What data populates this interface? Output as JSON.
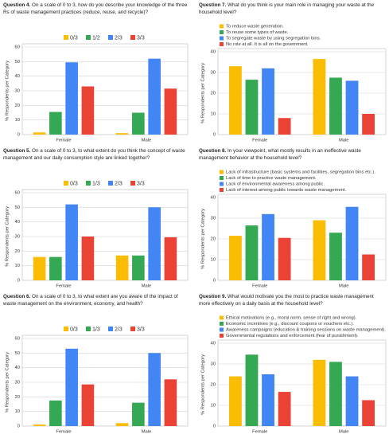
{
  "chart_data": [
    {
      "type": "bar",
      "question": "Question 4.",
      "title": "On a scale of 0 to 3, how do you describe your knowledge of the three Rs of waste management practices (reduce, reuse, and recycle)?",
      "ylabel": "% Respondents per Category",
      "categories": [
        "Female",
        "Male"
      ],
      "series": [
        {
          "name": "0/3",
          "color": "#fbbc04",
          "values": [
            1.5,
            1
          ]
        },
        {
          "name": "1/2",
          "color": "#34a853",
          "values": [
            15.5,
            15
          ]
        },
        {
          "name": "2/3",
          "color": "#4285f4",
          "values": [
            49.5,
            52
          ]
        },
        {
          "name": "3/3",
          "color": "#ea4335",
          "values": [
            33,
            31.5
          ]
        }
      ],
      "ylim": [
        0,
        60
      ],
      "yticks": [
        0,
        10,
        20,
        30,
        40,
        50,
        60
      ],
      "grid": true,
      "legend": "top"
    },
    {
      "type": "bar",
      "question": "Question 7.",
      "title": "What do you think is your main role in managing your waste at the household level?",
      "ylabel": "% Respondents per Category",
      "categories": [
        "Female",
        "Male"
      ],
      "series": [
        {
          "name": "To reduce waste generation.",
          "color": "#fbbc04",
          "values": [
            33,
            36.5
          ]
        },
        {
          "name": "To reuse some types of waste.",
          "color": "#34a853",
          "values": [
            26.5,
            27.5
          ]
        },
        {
          "name": "To segregate waste by using segregation bins.",
          "color": "#4285f4",
          "values": [
            32,
            26
          ]
        },
        {
          "name": "No role at all. It is all on the government.",
          "color": "#ea4335",
          "values": [
            8,
            10
          ]
        }
      ],
      "ylim": [
        0,
        40
      ],
      "yticks": [
        0,
        10,
        20,
        30,
        40
      ],
      "grid": true,
      "legend": "top-left"
    },
    {
      "type": "bar",
      "question": "Question 5.",
      "title": "On a scale of 0 to 3, to what extent do you think the concept of waste management and our daily consumption style are linked together?",
      "ylabel": "% Respondents per Category",
      "categories": [
        "Female",
        "Male"
      ],
      "series": [
        {
          "name": "0/3",
          "color": "#fbbc04",
          "values": [
            16,
            17
          ]
        },
        {
          "name": "1/3",
          "color": "#34a853",
          "values": [
            16,
            17
          ]
        },
        {
          "name": "2/3",
          "color": "#4285f4",
          "values": [
            52,
            50
          ]
        },
        {
          "name": "3/3",
          "color": "#ea4335",
          "values": [
            30,
            29.5
          ]
        }
      ],
      "ylim": [
        0,
        60
      ],
      "yticks": [
        0,
        10,
        20,
        30,
        40,
        50,
        60
      ],
      "grid": true,
      "legend": "top"
    },
    {
      "type": "bar",
      "question": "Question 8.",
      "title": "In your viewpoint, what mostly results in an ineffective waste management behavior at the household level?",
      "ylabel": "% Respondents per Category",
      "categories": [
        "Female",
        "Male"
      ],
      "series": [
        {
          "name": "Lack of infrastructure (basic systems and facilities, segregation bins etc.).",
          "color": "#fbbc04",
          "values": [
            21.5,
            29
          ]
        },
        {
          "name": "Lack of time to practice waste management.",
          "color": "#34a853",
          "values": [
            26.5,
            23
          ]
        },
        {
          "name": "Lack of environmental awareness among public.",
          "color": "#4285f4",
          "values": [
            32,
            35.5
          ]
        },
        {
          "name": "Lack of interest among public towards waste management.",
          "color": "#ea4335",
          "values": [
            20.5,
            12.5
          ]
        }
      ],
      "ylim": [
        0,
        40
      ],
      "yticks": [
        0,
        10,
        20,
        30,
        40
      ],
      "grid": true,
      "legend": "top-left"
    },
    {
      "type": "bar",
      "question": "Question 6.",
      "title": "On a scale of 0 to 3, to what extent are you aware of the impact of waste management on the environment, economy, and health?",
      "ylabel": "% Respondents per Category",
      "categories": [
        "Female",
        "Male"
      ],
      "series": [
        {
          "name": "0/3",
          "color": "#fbbc04",
          "values": [
            1,
            2
          ]
        },
        {
          "name": "1/3",
          "color": "#34a853",
          "values": [
            17.5,
            16
          ]
        },
        {
          "name": "2/3",
          "color": "#4285f4",
          "values": [
            53,
            50
          ]
        },
        {
          "name": "3/3",
          "color": "#ea4335",
          "values": [
            28.5,
            32
          ]
        }
      ],
      "ylim": [
        0,
        60
      ],
      "yticks": [
        0,
        10,
        20,
        30,
        40,
        50,
        60
      ],
      "grid": true,
      "legend": "top"
    },
    {
      "type": "bar",
      "question": "Question 9.",
      "title": "What would motivate you the most to practice waste management more effectively on a daily basis at the household level?",
      "ylabel": "% Respondents per Category",
      "categories": [
        "Female",
        "Male"
      ],
      "series": [
        {
          "name": "Ethical motivations (e.g., moral norm, sense of right and wrong).",
          "color": "#fbbc04",
          "values": [
            24,
            32
          ]
        },
        {
          "name": "Economic incentives (e.g., discount coupons or vouchers etc.).",
          "color": "#34a853",
          "values": [
            34.5,
            31
          ]
        },
        {
          "name": "Awareness campaigns (education & training sessions on waste management).",
          "color": "#4285f4",
          "values": [
            25,
            24
          ]
        },
        {
          "name": "Governmental regulations and enforcement (fear of punishment).",
          "color": "#ea4335",
          "values": [
            16.5,
            12.5
          ]
        }
      ],
      "ylim": [
        0,
        40
      ],
      "yticks": [
        0,
        10,
        20,
        30,
        40
      ],
      "grid": true,
      "legend": "top-left"
    }
  ]
}
